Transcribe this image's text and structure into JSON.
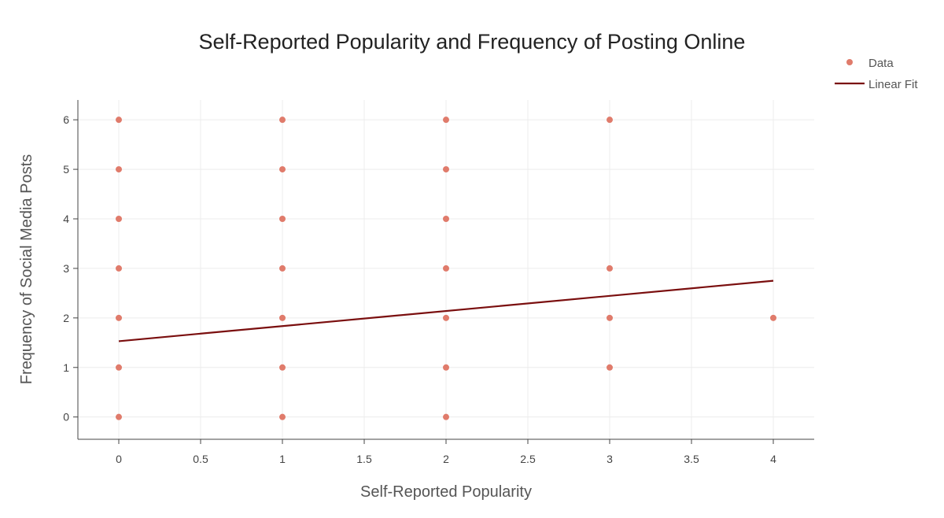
{
  "chart_data": {
    "type": "scatter",
    "title": "Self-Reported Popularity and Frequency of Posting Online",
    "xlabel": "Self-Reported Popularity",
    "ylabel": "Frequency of Social Media Posts",
    "xlim": [
      -0.25,
      4.25
    ],
    "ylim": [
      -0.45,
      6.4
    ],
    "x_ticks": [
      0,
      0.5,
      1,
      1.5,
      2,
      2.5,
      3,
      3.5,
      4
    ],
    "x_tick_labels": [
      "0",
      "0.5",
      "1",
      "1.5",
      "2",
      "2.5",
      "3",
      "3.5",
      "4"
    ],
    "y_ticks": [
      0,
      1,
      2,
      3,
      4,
      5,
      6
    ],
    "y_tick_labels": [
      "0",
      "1",
      "2",
      "3",
      "4",
      "5",
      "6"
    ],
    "grid": true,
    "legend_position": "top-right",
    "series": [
      {
        "name": "Data",
        "kind": "markers",
        "color": "#e07b6b",
        "points": [
          [
            0,
            0
          ],
          [
            0,
            1
          ],
          [
            0,
            2
          ],
          [
            0,
            3
          ],
          [
            0,
            4
          ],
          [
            0,
            5
          ],
          [
            0,
            6
          ],
          [
            1,
            0
          ],
          [
            1,
            1
          ],
          [
            1,
            2
          ],
          [
            1,
            3
          ],
          [
            1,
            4
          ],
          [
            1,
            5
          ],
          [
            1,
            6
          ],
          [
            2,
            0
          ],
          [
            2,
            1
          ],
          [
            2,
            2
          ],
          [
            2,
            3
          ],
          [
            2,
            4
          ],
          [
            2,
            5
          ],
          [
            2,
            6
          ],
          [
            3,
            1
          ],
          [
            3,
            2
          ],
          [
            3,
            3
          ],
          [
            3,
            6
          ],
          [
            4,
            2
          ]
        ]
      },
      {
        "name": "Linear Fit",
        "kind": "line",
        "color": "#7a0e0e",
        "x": [
          0,
          4
        ],
        "y": [
          1.53,
          2.75
        ]
      }
    ]
  }
}
